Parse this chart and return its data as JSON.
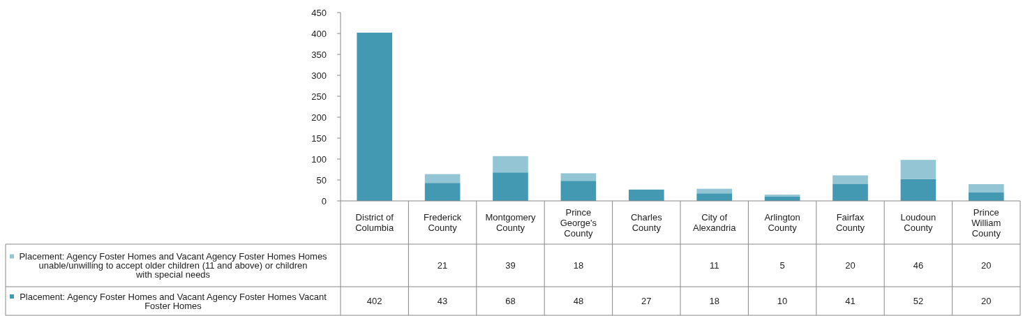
{
  "chart_data": {
    "type": "bar",
    "stacked": true,
    "categories": [
      "District of Columbia",
      "Frederick County",
      "Montgomery County",
      "Prince George's County",
      "Charles County",
      "City of Alexandria",
      "Arlington County",
      "Fairfax County",
      "Loudoun County",
      "Prince William County"
    ],
    "series": [
      {
        "name": "Placement: Agency Foster Homes and Vacant Agency Foster Homes Vacant Foster Homes",
        "color": "#4399b1",
        "values": [
          402,
          43,
          68,
          48,
          27,
          18,
          10,
          41,
          52,
          20
        ]
      },
      {
        "name": "Placement: Agency Foster Homes and Vacant Agency Foster Homes Homes unable/unwilling to accept older children (11 and above) or children with special needs",
        "color": "#93c5d5",
        "values": [
          null,
          21,
          39,
          18,
          null,
          11,
          5,
          20,
          46,
          20
        ]
      }
    ],
    "ylim": [
      0,
      450
    ],
    "yticks": [
      0,
      50,
      100,
      150,
      200,
      250,
      300,
      350,
      400,
      450
    ],
    "data_labels": true,
    "legend": "bottom",
    "grid": false
  }
}
